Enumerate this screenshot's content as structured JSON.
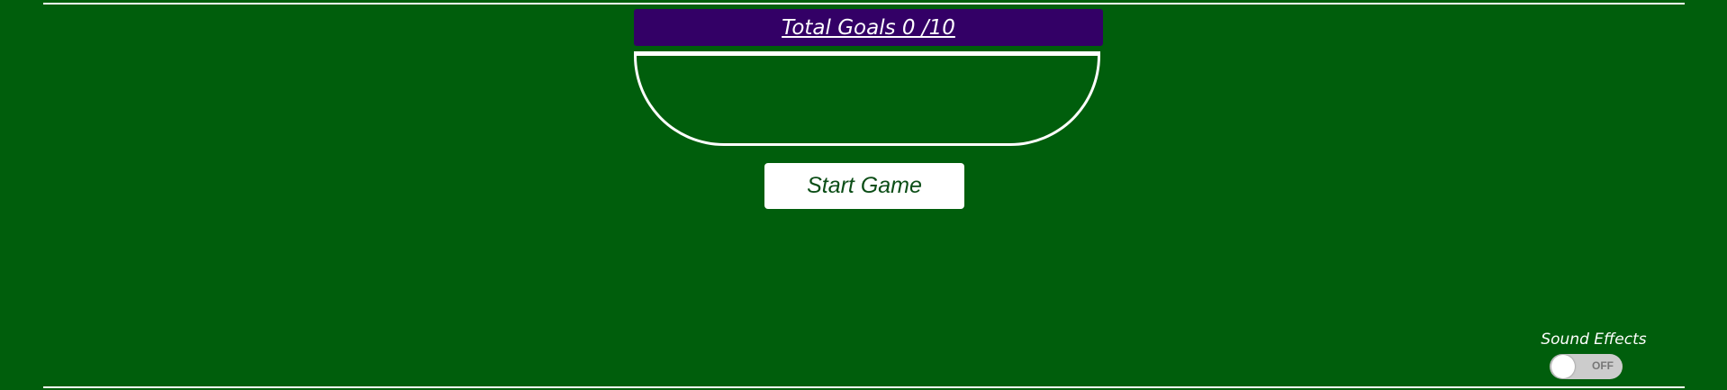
{
  "scoreboard": {
    "label": "Total Goals 0 /10",
    "goals": 0,
    "goal_target": 10
  },
  "start_button": {
    "label": "Start Game"
  },
  "sound_effects": {
    "label": "Sound Effects",
    "state_label": "OFF",
    "enabled": false
  },
  "colors": {
    "pitch": "#005e0c",
    "banner": "#330066",
    "lines": "#ffffff",
    "button_text": "#0b4d16",
    "toggle_track": "#cccccc"
  }
}
